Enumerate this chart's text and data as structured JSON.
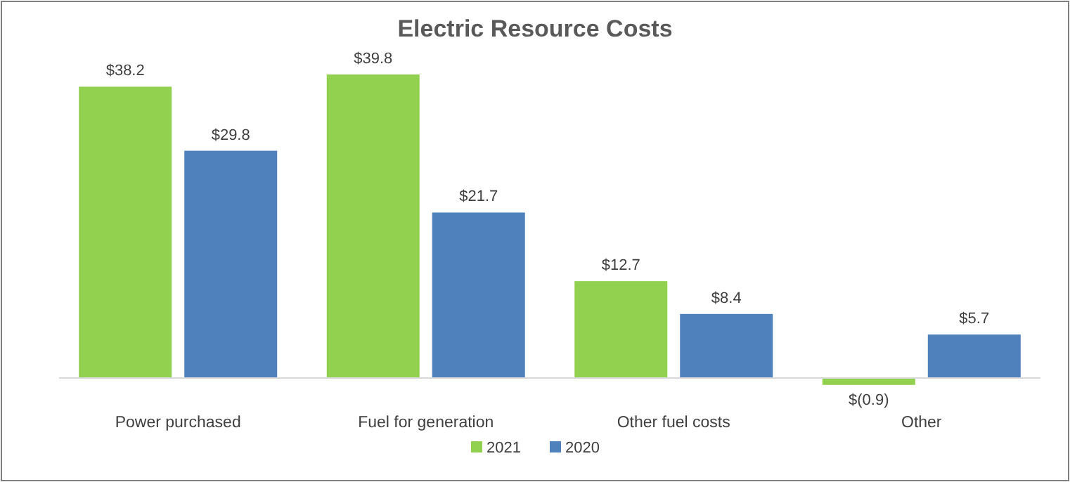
{
  "chart_data": {
    "type": "bar",
    "title": "Electric Resource Costs",
    "categories": [
      "Power purchased",
      "Fuel for generation",
      "Other fuel costs",
      "Other"
    ],
    "series": [
      {
        "name": "2021",
        "color": "#92d050",
        "values": [
          38.2,
          39.8,
          12.7,
          -0.9
        ],
        "value_labels": [
          "$38.2",
          "$39.8",
          "$12.7",
          "$(0.9)"
        ]
      },
      {
        "name": "2020",
        "color": "#4f81bd",
        "values": [
          29.8,
          21.7,
          8.4,
          5.7
        ],
        "value_labels": [
          "$29.8",
          "$21.7",
          "$8.4",
          "$5.7"
        ]
      }
    ],
    "legend": "bottom"
  }
}
